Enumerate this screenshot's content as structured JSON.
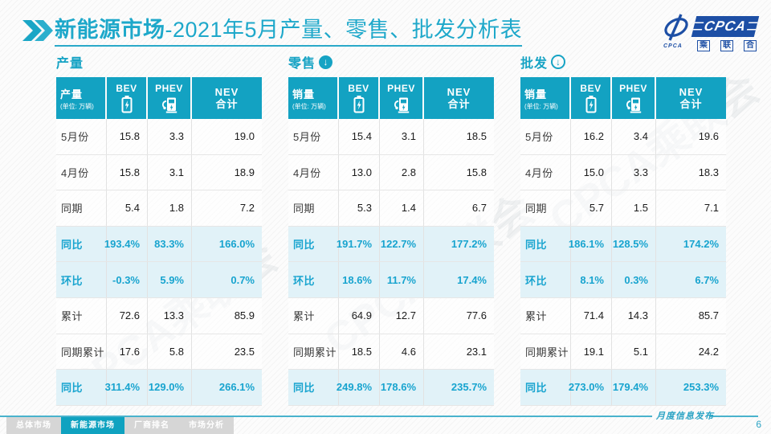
{
  "header": {
    "title_highlight": "新能源市场",
    "title_rest": "-2021年5月产量、零售、批发分析表",
    "logo": {
      "brand": "CPCA",
      "brand_sub_chars": [
        "乘",
        "联",
        "合"
      ],
      "emblem_text": "CPCA"
    }
  },
  "unit_note": "(单位: 万辆)",
  "columns": {
    "bev": "BEV",
    "phev": "PHEV",
    "nev_line1": "NEV",
    "nev_line2": "合计"
  },
  "icons": {
    "down_arrow": "↓"
  },
  "colors": {
    "teal": "#13a2c2",
    "teal_text": "#18a4cf",
    "highlight_row_bg": "#e1f2f8",
    "logo_blue": "#1d4fa5"
  },
  "sections": [
    {
      "heading": "产量",
      "measure_label": "产量",
      "rows": [
        {
          "label": "5月份",
          "values": [
            "15.8",
            "3.3",
            "19.0"
          ],
          "highlight": false
        },
        {
          "label": "4月份",
          "values": [
            "15.8",
            "3.1",
            "18.9"
          ],
          "highlight": false
        },
        {
          "label": "同期",
          "values": [
            "5.4",
            "1.8",
            "7.2"
          ],
          "highlight": false
        },
        {
          "label": "同比",
          "values": [
            "193.4%",
            "83.3%",
            "166.0%"
          ],
          "highlight": true
        },
        {
          "label": "环比",
          "values": [
            "-0.3%",
            "5.9%",
            "0.7%"
          ],
          "highlight": true
        },
        {
          "label": "累计",
          "values": [
            "72.6",
            "13.3",
            "85.9"
          ],
          "highlight": false
        },
        {
          "label": "同期累计",
          "values": [
            "17.6",
            "5.8",
            "23.5"
          ],
          "highlight": false
        },
        {
          "label": "同比",
          "values": [
            "311.4%",
            "129.0%",
            "266.1%"
          ],
          "highlight": true
        }
      ]
    },
    {
      "heading": "零售",
      "measure_label": "销量",
      "rows": [
        {
          "label": "5月份",
          "values": [
            "15.4",
            "3.1",
            "18.5"
          ],
          "highlight": false
        },
        {
          "label": "4月份",
          "values": [
            "13.0",
            "2.8",
            "15.8"
          ],
          "highlight": false
        },
        {
          "label": "同期",
          "values": [
            "5.3",
            "1.4",
            "6.7"
          ],
          "highlight": false
        },
        {
          "label": "同比",
          "values": [
            "191.7%",
            "122.7%",
            "177.2%"
          ],
          "highlight": true
        },
        {
          "label": "环比",
          "values": [
            "18.6%",
            "11.7%",
            "17.4%"
          ],
          "highlight": true
        },
        {
          "label": "累计",
          "values": [
            "64.9",
            "12.7",
            "77.6"
          ],
          "highlight": false
        },
        {
          "label": "同期累计",
          "values": [
            "18.5",
            "4.6",
            "23.1"
          ],
          "highlight": false
        },
        {
          "label": "同比",
          "values": [
            "249.8%",
            "178.6%",
            "235.7%"
          ],
          "highlight": true
        }
      ]
    },
    {
      "heading": "批发",
      "measure_label": "销量",
      "rows": [
        {
          "label": "5月份",
          "values": [
            "16.2",
            "3.4",
            "19.6"
          ],
          "highlight": false
        },
        {
          "label": "4月份",
          "values": [
            "15.0",
            "3.3",
            "18.3"
          ],
          "highlight": false
        },
        {
          "label": "同期",
          "values": [
            "5.7",
            "1.5",
            "7.1"
          ],
          "highlight": false
        },
        {
          "label": "同比",
          "values": [
            "186.1%",
            "128.5%",
            "174.2%"
          ],
          "highlight": true
        },
        {
          "label": "环比",
          "values": [
            "8.1%",
            "0.3%",
            "6.7%"
          ],
          "highlight": true
        },
        {
          "label": "累计",
          "values": [
            "71.4",
            "14.3",
            "85.7"
          ],
          "highlight": false
        },
        {
          "label": "同期累计",
          "values": [
            "19.1",
            "5.1",
            "24.2"
          ],
          "highlight": false
        },
        {
          "label": "同比",
          "values": [
            "273.0%",
            "179.4%",
            "253.3%"
          ],
          "highlight": true
        }
      ]
    }
  ],
  "watermark": "CPCA乘联会",
  "footer": {
    "tabs": [
      {
        "label": "总体市场",
        "active": false
      },
      {
        "label": "新能源市场",
        "active": true
      },
      {
        "label": "厂商排名",
        "active": false
      },
      {
        "label": "市场分析",
        "active": false
      }
    ],
    "note": "月度信息发布",
    "page": "6"
  }
}
